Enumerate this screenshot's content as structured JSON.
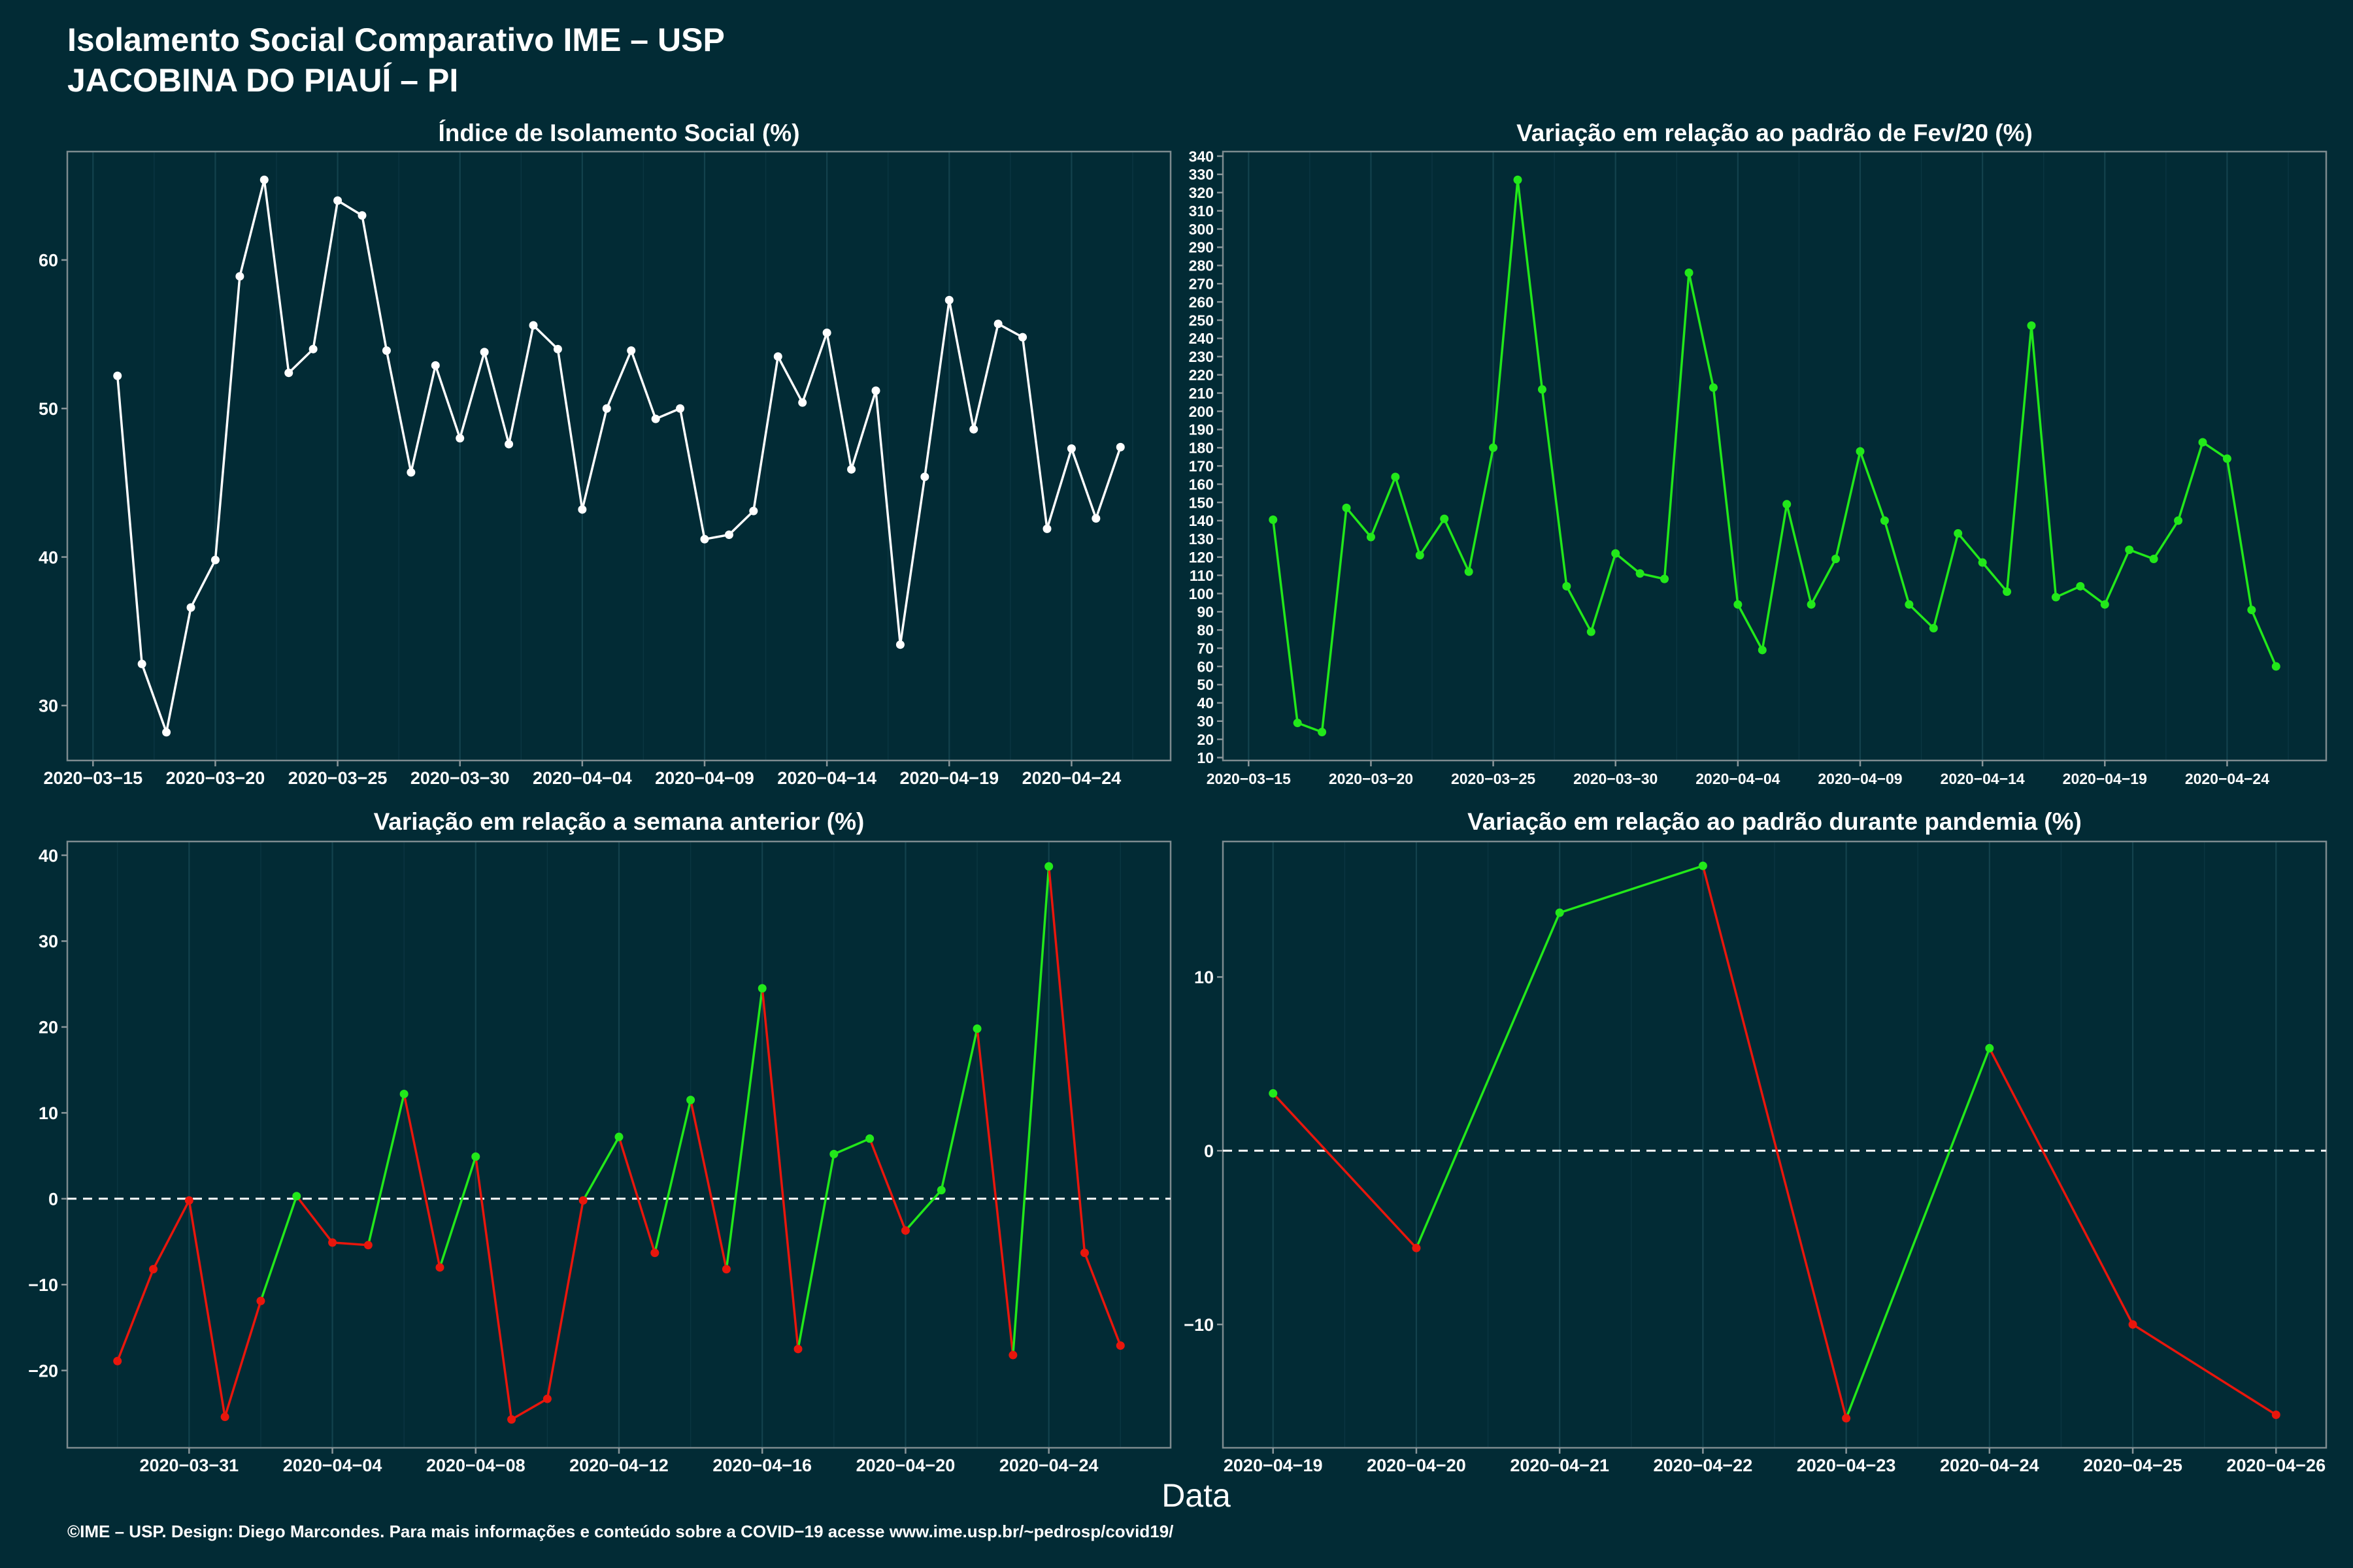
{
  "page": {
    "title_line1": "Isolamento Social Comparativo IME – USP",
    "title_line2": "JACOBINA DO PIAUÍ – PI",
    "xlabel": "Data",
    "footer": "©IME – USP. Design: Diego Marcondes. Para mais informações e conteúdo sobre a COVID−19 acesse www.ime.usp.br/~pedrosp/covid19/"
  },
  "colors": {
    "background": "#022b35",
    "text": "#ffffff",
    "panel_border": "#7d8b8f",
    "tick": "#8a969a",
    "grid_major": "#13424d",
    "grid_minor": "#0b3642",
    "reference_line": "#ffffff"
  },
  "chart_data": [
    {
      "type": "line",
      "title": "Índice de Isolamento Social (%)",
      "xlabel": "",
      "ylabel": "",
      "grid": "vertical",
      "legend": "none",
      "color": "#ffffff",
      "ylim": [
        26.3,
        67.3
      ],
      "y_ticks": [
        30,
        40,
        50,
        60
      ],
      "y_tick_labels": [
        "30",
        "40",
        "50",
        "60"
      ],
      "x_ticks": [
        "2020-03-15",
        "2020-03-20",
        "2020-03-25",
        "2020-03-30",
        "2020-04-04",
        "2020-04-09",
        "2020-04-14",
        "2020-04-19",
        "2020-04-24"
      ],
      "x_tick_labels": [
        "2020−03−15",
        "2020−03−20",
        "2020−03−25",
        "2020−03−30",
        "2020−04−04",
        "2020−04−09",
        "2020−04−14",
        "2020−04−19",
        "2020−04−24"
      ],
      "x": [
        "2020-03-16",
        "2020-03-17",
        "2020-03-18",
        "2020-03-19",
        "2020-03-20",
        "2020-03-21",
        "2020-03-22",
        "2020-03-23",
        "2020-03-24",
        "2020-03-25",
        "2020-03-26",
        "2020-03-27",
        "2020-03-28",
        "2020-03-29",
        "2020-03-30",
        "2020-03-31",
        "2020-04-01",
        "2020-04-02",
        "2020-04-03",
        "2020-04-04",
        "2020-04-05",
        "2020-04-06",
        "2020-04-07",
        "2020-04-08",
        "2020-04-09",
        "2020-04-10",
        "2020-04-11",
        "2020-04-12",
        "2020-04-13",
        "2020-04-14",
        "2020-04-15",
        "2020-04-16",
        "2020-04-17",
        "2020-04-18",
        "2020-04-19",
        "2020-04-20",
        "2020-04-21",
        "2020-04-22",
        "2020-04-23",
        "2020-04-24",
        "2020-04-25",
        "2020-04-26"
      ],
      "values": [
        52.2,
        32.8,
        28.2,
        36.6,
        39.8,
        58.9,
        65.4,
        52.4,
        54.0,
        64.0,
        63.0,
        53.9,
        45.7,
        52.9,
        48.0,
        53.8,
        47.6,
        55.6,
        54.0,
        43.2,
        50.0,
        53.9,
        49.3,
        50.0,
        41.2,
        41.5,
        43.1,
        53.5,
        50.4,
        55.1,
        45.9,
        51.2,
        34.1,
        45.4,
        57.3,
        48.6,
        55.7,
        54.8,
        41.9,
        47.3,
        42.6,
        47.4
      ]
    },
    {
      "type": "line",
      "title": "Variação em relação ao padrão de Fev/20 (%)",
      "xlabel": "",
      "ylabel": "",
      "grid": "vertical",
      "legend": "none",
      "color": "#22e81a",
      "ylim": [
        8.4,
        342.5
      ],
      "y_ticks": [
        10,
        20,
        30,
        40,
        50,
        60,
        70,
        80,
        90,
        100,
        110,
        120,
        130,
        140,
        150,
        160,
        170,
        180,
        190,
        200,
        210,
        220,
        230,
        240,
        250,
        260,
        270,
        280,
        290,
        300,
        310,
        320,
        330,
        340
      ],
      "y_tick_labels": [
        "10",
        "20",
        "30",
        "40",
        "50",
        "60",
        "70",
        "80",
        "90",
        "100",
        "110",
        "120",
        "130",
        "140",
        "150",
        "160",
        "170",
        "180",
        "190",
        "200",
        "210",
        "220",
        "230",
        "240",
        "250",
        "260",
        "270",
        "280",
        "290",
        "300",
        "310",
        "320",
        "330",
        "340"
      ],
      "x_ticks": [
        "2020-03-15",
        "2020-03-20",
        "2020-03-25",
        "2020-03-30",
        "2020-04-04",
        "2020-04-09",
        "2020-04-14",
        "2020-04-19",
        "2020-04-24"
      ],
      "x_tick_labels": [
        "2020−03−15",
        "2020−03−20",
        "2020−03−25",
        "2020−03−30",
        "2020−04−04",
        "2020−04−09",
        "2020−04−14",
        "2020−04−19",
        "2020−04−24"
      ],
      "x": [
        "2020-03-16",
        "2020-03-17",
        "2020-03-18",
        "2020-03-19",
        "2020-03-20",
        "2020-03-21",
        "2020-03-22",
        "2020-03-23",
        "2020-03-24",
        "2020-03-25",
        "2020-03-26",
        "2020-03-27",
        "2020-03-28",
        "2020-03-29",
        "2020-03-30",
        "2020-03-31",
        "2020-04-01",
        "2020-04-02",
        "2020-04-03",
        "2020-04-04",
        "2020-04-05",
        "2020-04-06",
        "2020-04-07",
        "2020-04-08",
        "2020-04-09",
        "2020-04-10",
        "2020-04-11",
        "2020-04-12",
        "2020-04-13",
        "2020-04-14",
        "2020-04-15",
        "2020-04-16",
        "2020-04-17",
        "2020-04-18",
        "2020-04-19",
        "2020-04-20",
        "2020-04-21",
        "2020-04-22",
        "2020-04-23",
        "2020-04-24",
        "2020-04-25",
        "2020-04-26"
      ],
      "values": [
        140.5,
        29,
        24,
        147,
        131,
        164,
        121,
        141,
        112,
        180,
        327,
        212,
        104,
        79,
        122,
        111,
        108,
        276,
        213,
        94,
        69,
        149,
        94,
        119,
        178,
        140,
        94,
        81,
        133,
        117,
        101,
        247,
        98,
        104,
        94,
        124,
        119,
        140,
        183,
        174,
        91,
        60
      ]
    },
    {
      "type": "line",
      "title": "Variação em relação a semana anterior (%)",
      "xlabel": "",
      "ylabel": "",
      "grid": "vertical",
      "legend": "none",
      "color_by_sign": {
        "positive": "#22e81a",
        "negative": "#e8160c"
      },
      "reference_line": {
        "y": 0,
        "style": "dashed"
      },
      "ylim": [
        -29.0,
        41.6
      ],
      "y_ticks": [
        -20,
        -10,
        0,
        10,
        20,
        30,
        40
      ],
      "y_tick_labels": [
        "−20",
        "−10",
        "0",
        "10",
        "20",
        "30",
        "40"
      ],
      "x_ticks": [
        "2020-03-31",
        "2020-04-04",
        "2020-04-08",
        "2020-04-12",
        "2020-04-16",
        "2020-04-20",
        "2020-04-24"
      ],
      "x_tick_labels": [
        "2020−03−31",
        "2020−04−04",
        "2020−04−08",
        "2020−04−12",
        "2020−04−16",
        "2020−04−20",
        "2020−04−24"
      ],
      "x": [
        "2020-03-29",
        "2020-03-30",
        "2020-03-31",
        "2020-04-01",
        "2020-04-02",
        "2020-04-03",
        "2020-04-04",
        "2020-04-05",
        "2020-04-06",
        "2020-04-07",
        "2020-04-08",
        "2020-04-09",
        "2020-04-10",
        "2020-04-11",
        "2020-04-12",
        "2020-04-13",
        "2020-04-14",
        "2020-04-15",
        "2020-04-16",
        "2020-04-17",
        "2020-04-18",
        "2020-04-19",
        "2020-04-20",
        "2020-04-21",
        "2020-04-22",
        "2020-04-23",
        "2020-04-24",
        "2020-04-25",
        "2020-04-26"
      ],
      "values": [
        -18.9,
        -8.2,
        -0.2,
        -25.4,
        -11.9,
        0.3,
        -5.1,
        -5.4,
        12.2,
        -8.0,
        4.9,
        -25.7,
        -23.3,
        -0.2,
        7.2,
        -6.3,
        11.5,
        -8.2,
        24.5,
        -17.5,
        5.2,
        7.0,
        -3.7,
        1.0,
        19.8,
        -18.2,
        38.7,
        -6.3,
        -17.1
      ]
    },
    {
      "type": "line",
      "title": "Variação em relação ao padrão durante pandemia (%)",
      "xlabel": "",
      "ylabel": "",
      "grid": "vertical",
      "legend": "none",
      "color_by_sign": {
        "positive": "#22e81a",
        "negative": "#e8160c"
      },
      "reference_line": {
        "y": 0,
        "style": "dashed"
      },
      "ylim": [
        -17.1,
        17.8
      ],
      "y_ticks": [
        -10,
        0,
        10
      ],
      "y_tick_labels": [
        "−10",
        "0",
        "10"
      ],
      "x_ticks": [
        "2020-04-19",
        "2020-04-20",
        "2020-04-21",
        "2020-04-22",
        "2020-04-23",
        "2020-04-24",
        "2020-04-25",
        "2020-04-26"
      ],
      "x_tick_labels": [
        "2020−04−19",
        "2020−04−20",
        "2020−04−21",
        "2020−04−22",
        "2020−04−23",
        "2020−04−24",
        "2020−04−25",
        "2020−04−26"
      ],
      "x": [
        "2020-04-19",
        "2020-04-20",
        "2020-04-21",
        "2020-04-22",
        "2020-04-23",
        "2020-04-24",
        "2020-04-25",
        "2020-04-26"
      ],
      "values": [
        3.3,
        -5.6,
        13.7,
        16.4,
        -15.4,
        5.9,
        -10.0,
        -15.2
      ]
    }
  ]
}
